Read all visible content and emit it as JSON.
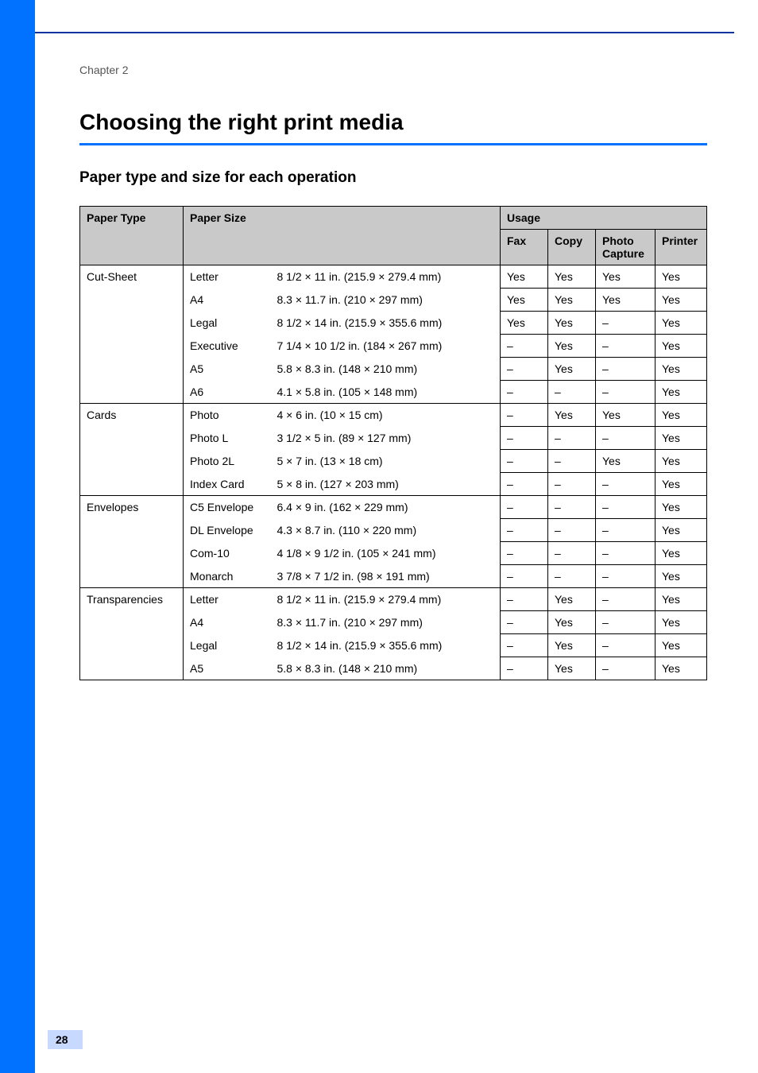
{
  "chapter_label": "Chapter 2",
  "title": "Choosing the right print media",
  "section_title": "Paper type and size for each operation",
  "colors": {
    "rail": "#0072ff",
    "top_rule": "#0033a0",
    "header_bg": "#c9c9c9",
    "page_num_bg": "#c8d9ff"
  },
  "table": {
    "top_headers": [
      "Paper Type",
      "Paper Size",
      "Usage"
    ],
    "usage_headers": [
      "Fax",
      "Copy",
      "Photo Capture",
      "Printer"
    ],
    "groups": [
      {
        "type": "Cut-Sheet",
        "rows": [
          {
            "name": "Letter",
            "dim": "8 1/2 × 11 in. (215.9 × 279.4 mm)",
            "fax": "Yes",
            "copy": "Yes",
            "photo": "Yes",
            "printer": "Yes"
          },
          {
            "name": "A4",
            "dim": "8.3 × 11.7 in. (210 × 297 mm)",
            "fax": "Yes",
            "copy": "Yes",
            "photo": "Yes",
            "printer": "Yes"
          },
          {
            "name": "Legal",
            "dim": "8 1/2 × 14 in. (215.9 × 355.6 mm)",
            "fax": "Yes",
            "copy": "Yes",
            "photo": "–",
            "printer": "Yes"
          },
          {
            "name": "Executive",
            "dim": "7 1/4 × 10 1/2 in. (184 × 267 mm)",
            "fax": "–",
            "copy": "Yes",
            "photo": "–",
            "printer": "Yes"
          },
          {
            "name": "A5",
            "dim": "5.8 × 8.3 in. (148 × 210 mm)",
            "fax": "–",
            "copy": "Yes",
            "photo": "–",
            "printer": "Yes"
          },
          {
            "name": "A6",
            "dim": "4.1 × 5.8 in. (105 × 148 mm)",
            "fax": "–",
            "copy": "–",
            "photo": "–",
            "printer": "Yes"
          }
        ]
      },
      {
        "type": "Cards",
        "rows": [
          {
            "name": "Photo",
            "dim": "4 × 6 in. (10 × 15 cm)",
            "fax": "–",
            "copy": "Yes",
            "photo": "Yes",
            "printer": "Yes"
          },
          {
            "name": "Photo L",
            "dim": "3 1/2 × 5 in. (89 × 127 mm)",
            "fax": "–",
            "copy": "–",
            "photo": "–",
            "printer": "Yes"
          },
          {
            "name": "Photo 2L",
            "dim": "5 × 7 in. (13 × 18 cm)",
            "fax": "–",
            "copy": "–",
            "photo": "Yes",
            "printer": "Yes"
          },
          {
            "name": "Index Card",
            "dim": "5 × 8 in. (127 × 203 mm)",
            "fax": "–",
            "copy": "–",
            "photo": "–",
            "printer": "Yes"
          }
        ]
      },
      {
        "type": "Envelopes",
        "rows": [
          {
            "name": "C5 Envelope",
            "dim": "6.4 × 9 in. (162 × 229 mm)",
            "fax": "–",
            "copy": "–",
            "photo": "–",
            "printer": "Yes"
          },
          {
            "name": "DL Envelope",
            "dim": "4.3 × 8.7 in. (110 × 220 mm)",
            "fax": "–",
            "copy": "–",
            "photo": "–",
            "printer": "Yes"
          },
          {
            "name": "Com-10",
            "dim": "4 1/8 × 9 1/2 in. (105 × 241 mm)",
            "fax": "–",
            "copy": "–",
            "photo": "–",
            "printer": "Yes"
          },
          {
            "name": "Monarch",
            "dim": "3 7/8 × 7 1/2 in. (98 × 191 mm)",
            "fax": "–",
            "copy": "–",
            "photo": "–",
            "printer": "Yes"
          }
        ]
      },
      {
        "type": "Transparencies",
        "rows": [
          {
            "name": "Letter",
            "dim": "8 1/2 × 11 in. (215.9 × 279.4 mm)",
            "fax": "–",
            "copy": "Yes",
            "photo": "–",
            "printer": "Yes"
          },
          {
            "name": "A4",
            "dim": "8.3 × 11.7 in. (210 × 297 mm)",
            "fax": "–",
            "copy": "Yes",
            "photo": "–",
            "printer": "Yes"
          },
          {
            "name": "Legal",
            "dim": "8 1/2 × 14 in. (215.9 × 355.6 mm)",
            "fax": "–",
            "copy": "Yes",
            "photo": "–",
            "printer": "Yes"
          },
          {
            "name": "A5",
            "dim": "5.8 × 8.3 in. (148 × 210 mm)",
            "fax": "–",
            "copy": "Yes",
            "photo": "–",
            "printer": "Yes"
          }
        ]
      }
    ]
  },
  "page_number": "28"
}
